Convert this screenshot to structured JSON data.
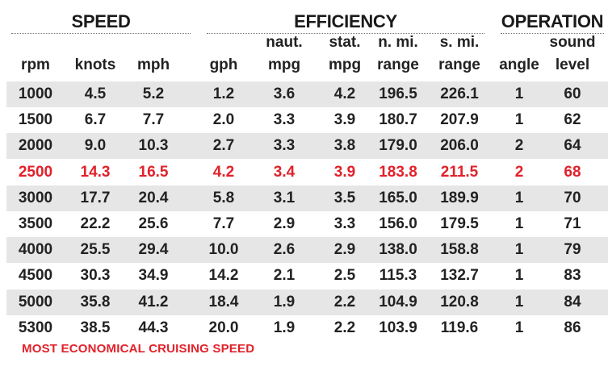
{
  "groups": {
    "speed": "SPEED",
    "efficiency": "EFFICIENCY",
    "operation": "OPERATION"
  },
  "headers": {
    "rpm": [
      "",
      "rpm"
    ],
    "knots": [
      "",
      "knots"
    ],
    "mph": [
      "",
      "mph"
    ],
    "gph": [
      "",
      "gph"
    ],
    "naut_mpg": [
      "naut.",
      "mpg"
    ],
    "stat_mpg": [
      "stat.",
      "mpg"
    ],
    "nmi_range": [
      "n. mi.",
      "range"
    ],
    "smi_range": [
      "s. mi.",
      "range"
    ],
    "angle": [
      "",
      "angle"
    ],
    "sound": [
      "sound",
      "level"
    ]
  },
  "rows": [
    [
      "1000",
      "4.5",
      "5.2",
      "1.2",
      "3.6",
      "4.2",
      "196.5",
      "226.1",
      "1",
      "60"
    ],
    [
      "1500",
      "6.7",
      "7.7",
      "2.0",
      "3.3",
      "3.9",
      "180.7",
      "207.9",
      "1",
      "62"
    ],
    [
      "2000",
      "9.0",
      "10.3",
      "2.7",
      "3.3",
      "3.8",
      "179.0",
      "206.0",
      "2",
      "64"
    ],
    [
      "2500",
      "14.3",
      "16.5",
      "4.2",
      "3.4",
      "3.9",
      "183.8",
      "211.5",
      "2",
      "68"
    ],
    [
      "3000",
      "17.7",
      "20.4",
      "5.8",
      "3.1",
      "3.5",
      "165.0",
      "189.9",
      "1",
      "70"
    ],
    [
      "3500",
      "22.2",
      "25.6",
      "7.7",
      "2.9",
      "3.3",
      "156.0",
      "179.5",
      "1",
      "71"
    ],
    [
      "4000",
      "25.5",
      "29.4",
      "10.0",
      "2.6",
      "2.9",
      "138.0",
      "158.8",
      "1",
      "79"
    ],
    [
      "4500",
      "30.3",
      "34.9",
      "14.2",
      "2.1",
      "2.5",
      "115.3",
      "132.7",
      "1",
      "83"
    ],
    [
      "5000",
      "35.8",
      "41.2",
      "18.4",
      "1.9",
      "2.2",
      "104.9",
      "120.8",
      "1",
      "84"
    ],
    [
      "5300",
      "38.5",
      "44.3",
      "20.0",
      "1.9",
      "2.2",
      "103.9",
      "119.6",
      "1",
      "86"
    ]
  ],
  "highlight_row": 3,
  "highlight_color": "#e2212a",
  "footnote": "MOST ECONOMICAL CRUISING SPEED"
}
